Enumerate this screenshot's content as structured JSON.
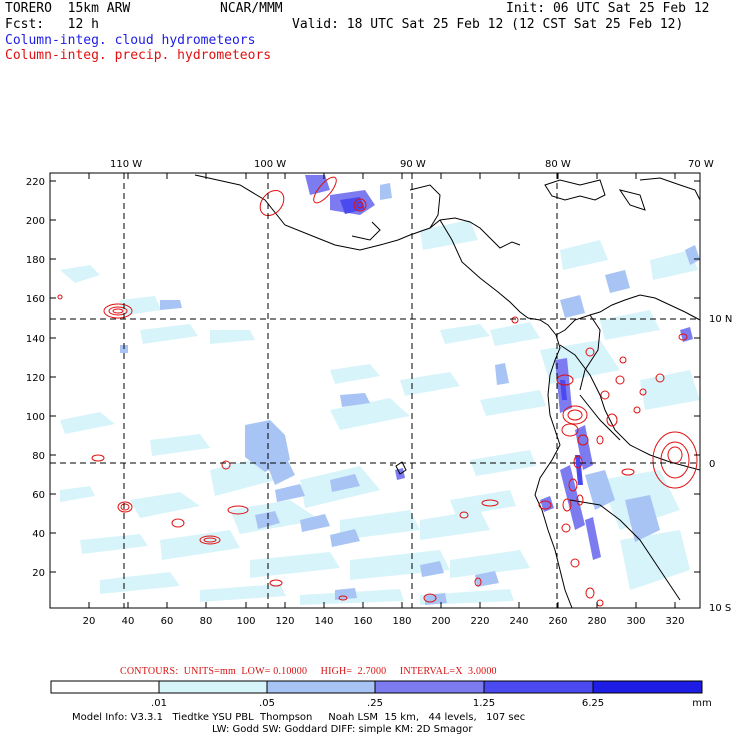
{
  "header": {
    "left_line1": "TORERO  15km ARW",
    "center_line1": "NCAR/MMM",
    "right_line1": "Init: 06 UTC Sat 25 Feb 12",
    "left_line2": "Fcst:   12 h",
    "right_line2": "Valid: 18 UTC Sat 25 Feb 12 (12 CST Sat 25 Feb 12)",
    "field1": "Column-integ. cloud hydrometeors",
    "field2": "Column-integ. precip. hydrometeors",
    "field1_color": "#1d1de6",
    "field2_color": "#e01010"
  },
  "map": {
    "top_lon_labels": [
      "110 W",
      "100 W",
      "90 W",
      "80 W",
      "70 W"
    ],
    "right_lat_labels": [
      "10 N",
      "0",
      "10 S"
    ],
    "left_y_ticks": [
      "220",
      "200",
      "180",
      "160",
      "140",
      "120",
      "100",
      "80",
      "60",
      "40",
      "20"
    ],
    "bottom_x_ticks": [
      "20",
      "40",
      "60",
      "80",
      "100",
      "120",
      "140",
      "160",
      "180",
      "200",
      "220",
      "240",
      "260",
      "280",
      "300",
      "320"
    ]
  },
  "contour_info": "CONTOURS:  UNITS=mm  LOW= 0.10000     HIGH=  2.7000     INTERVAL=X  3.0000",
  "colorbar": {
    "labels": [
      ".01",
      ".05",
      ".25",
      "1.25",
      "6.25"
    ],
    "unit": "mm",
    "colors": [
      "#ffffff",
      "#d8f4fb",
      "#a8c4f4",
      "#7c7cf0",
      "#4a4af0",
      "#1d1de6"
    ]
  },
  "model_info": {
    "line1": "Model Info: V3.3.1   Tiedtke YSU PBL  Thompson     Noah LSM  15 km,   44 levels,   107 sec",
    "line2": "LW: Godd SW: Goddard DIFF: simple KM: 2D Smagor"
  }
}
